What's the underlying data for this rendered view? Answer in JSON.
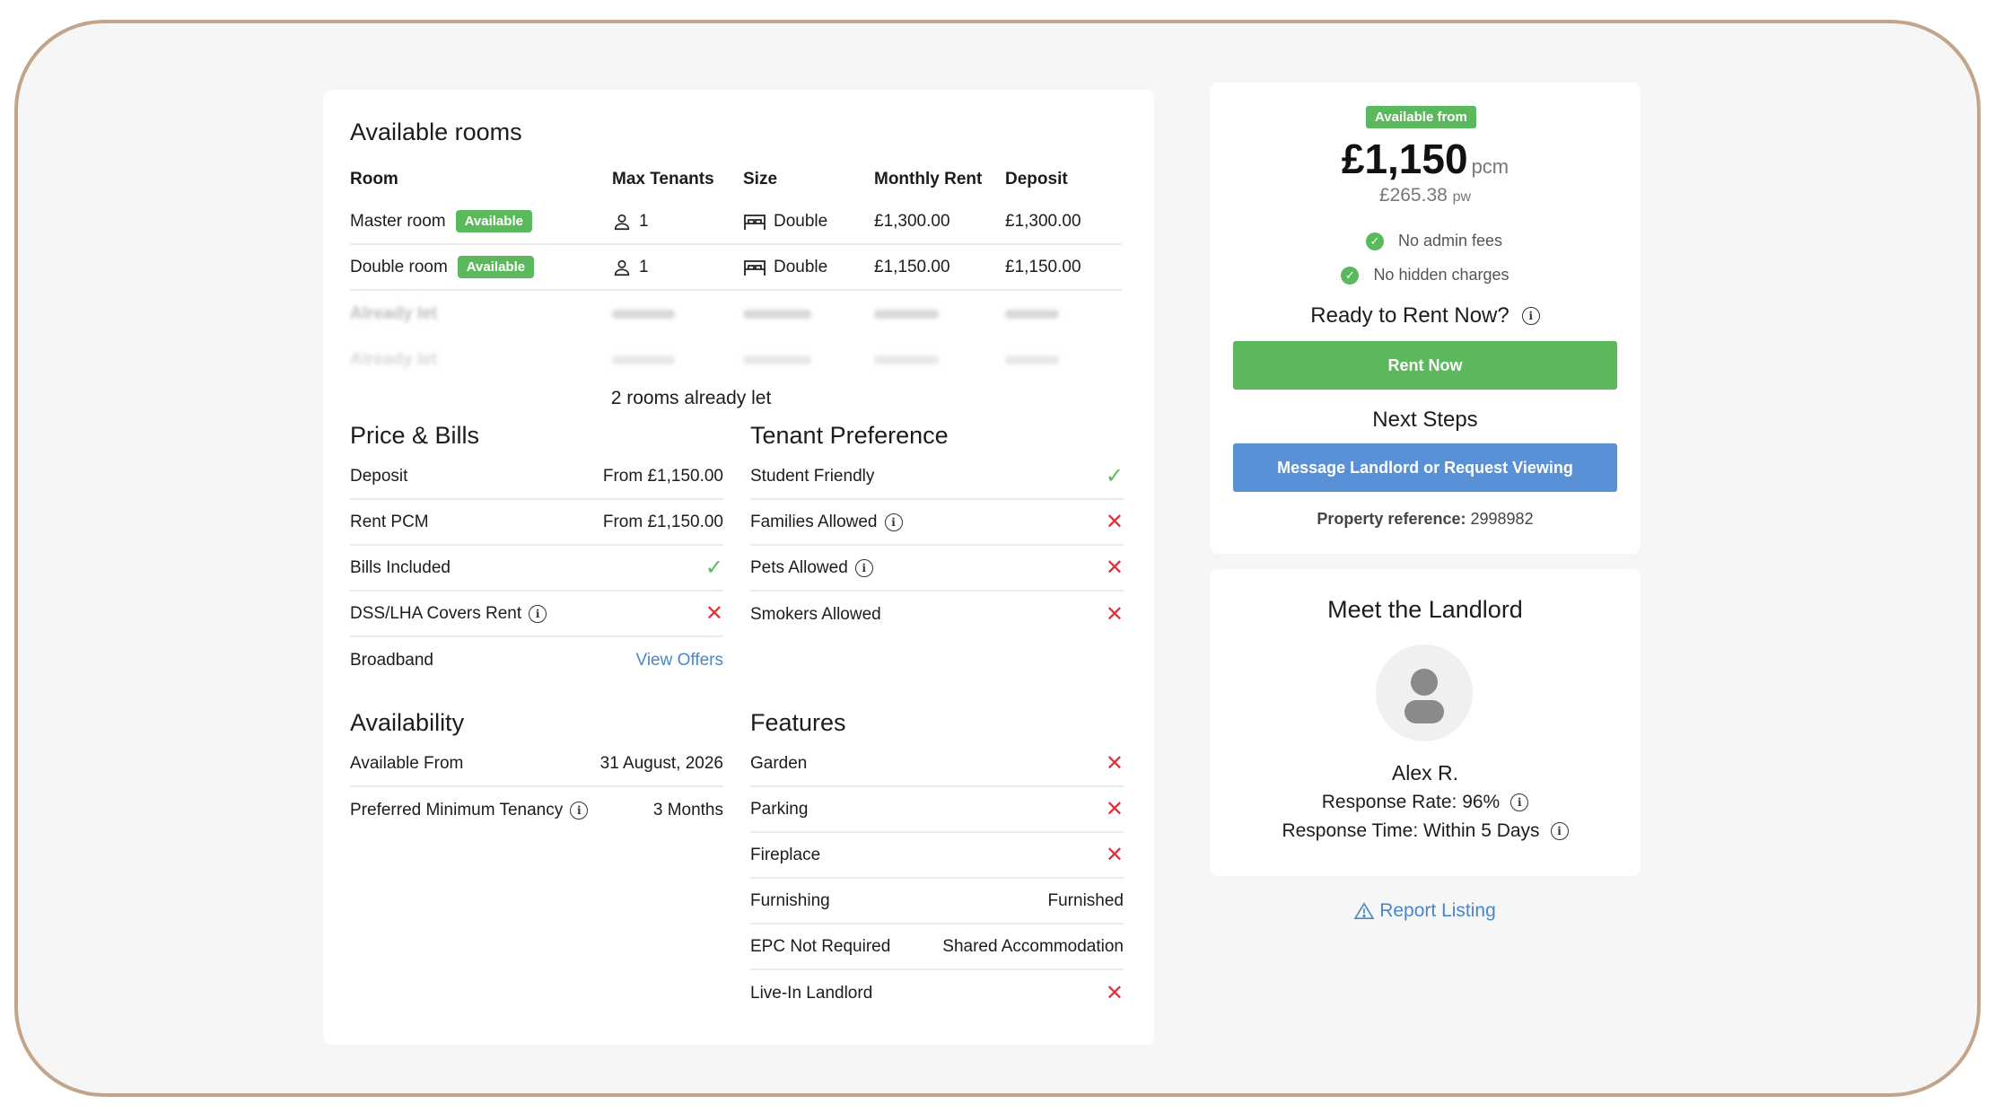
{
  "rooms": {
    "title": "Available rooms",
    "headers": {
      "room": "Room",
      "max_tenants": "Max Tenants",
      "size": "Size",
      "monthly_rent": "Monthly Rent",
      "deposit": "Deposit"
    },
    "rows": [
      {
        "name": "Master room",
        "badge": "Available",
        "tenants": "1",
        "size": "Double",
        "rent": "£1,300.00",
        "deposit": "£1,300.00"
      },
      {
        "name": "Double room",
        "badge": "Available",
        "tenants": "1",
        "size": "Double",
        "rent": "£1,150.00",
        "deposit": "£1,150.00"
      }
    ],
    "let_rows": [
      "Already let",
      "Already let"
    ],
    "let_summary": "2 rooms already let"
  },
  "price_bills": {
    "title": "Price & Bills",
    "items": [
      {
        "label": "Deposit",
        "value": "From £1,150.00"
      },
      {
        "label": "Rent PCM",
        "value": "From £1,150.00"
      },
      {
        "label": "Bills Included",
        "status": "yes"
      },
      {
        "label": "DSS/LHA Covers Rent",
        "status": "no"
      },
      {
        "label": "Broadband",
        "link": "View Offers"
      }
    ]
  },
  "tenant_preference": {
    "title": "Tenant Preference",
    "items": [
      {
        "label": "Student Friendly",
        "status": "yes"
      },
      {
        "label": "Families Allowed",
        "status": "no"
      },
      {
        "label": "Pets Allowed",
        "status": "no"
      },
      {
        "label": "Smokers Allowed",
        "status": "no"
      }
    ]
  },
  "availability": {
    "title": "Availability",
    "items": [
      {
        "label": "Available From",
        "value": "31 August, 2026"
      },
      {
        "label": "Preferred Minimum Tenancy",
        "value": "3 Months"
      }
    ]
  },
  "features": {
    "title": "Features",
    "items": [
      {
        "label": "Garden",
        "status": "no"
      },
      {
        "label": "Parking",
        "status": "no"
      },
      {
        "label": "Fireplace",
        "status": "no"
      },
      {
        "label": "Furnishing",
        "value": "Furnished"
      },
      {
        "label": "EPC Not Required",
        "value": "Shared Accommodation"
      },
      {
        "label": "Live-In Landlord",
        "status": "no"
      }
    ]
  },
  "price_card": {
    "badge": "Available from",
    "price": "£1,150",
    "unit": "pcm",
    "weekly": "£265.38",
    "weekly_unit": "pw",
    "perk1": "No admin fees",
    "perk2": "No hidden charges",
    "ready": "Ready to Rent Now?",
    "rent_button": "Rent Now",
    "next_steps": "Next Steps",
    "message_button": "Message Landlord or Request Viewing",
    "ref_label": "Property reference:",
    "ref_value": "2998982"
  },
  "landlord": {
    "title": "Meet the Landlord",
    "name": "Alex R.",
    "response_rate": "Response Rate: 96%",
    "response_time": "Response Time: Within 5 Days"
  },
  "report": "Report Listing",
  "colors": {
    "green": "#5cb85c",
    "blue": "#5a90d6",
    "red": "#e0313b",
    "link": "#4a86c8",
    "frame": "#c4a488"
  }
}
